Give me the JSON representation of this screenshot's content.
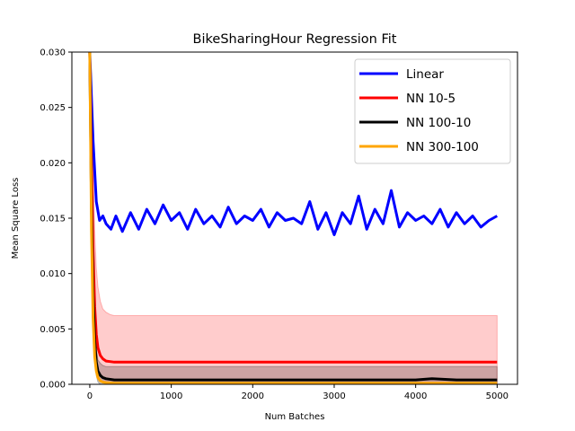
{
  "chart_data": {
    "type": "line",
    "title": "BikeSharingHour Regression Fit",
    "xlabel": "Num Batches",
    "ylabel": "Mean Square Loss",
    "xlim": [
      -220,
      5250
    ],
    "ylim": [
      0,
      0.03
    ],
    "xticks": [
      0,
      1000,
      2000,
      3000,
      4000,
      5000
    ],
    "xtick_labels": [
      "0",
      "1000",
      "2000",
      "3000",
      "4000",
      "5000"
    ],
    "yticks": [
      0,
      0.005,
      0.01,
      0.015,
      0.02,
      0.025,
      0.03
    ],
    "ytick_labels": [
      "0.000",
      "0.005",
      "0.010",
      "0.015",
      "0.020",
      "0.025",
      "0.030"
    ],
    "grid": false,
    "legend": {
      "position": "top-right"
    },
    "series": [
      {
        "name": "Linear",
        "color": "#0000ff",
        "x": [
          0,
          40,
          80,
          120,
          160,
          200,
          260,
          320,
          400,
          500,
          600,
          700,
          800,
          900,
          1000,
          1100,
          1200,
          1300,
          1400,
          1500,
          1600,
          1700,
          1800,
          1900,
          2000,
          2100,
          2200,
          2300,
          2400,
          2500,
          2600,
          2700,
          2800,
          2900,
          3000,
          3100,
          3200,
          3300,
          3400,
          3500,
          3600,
          3700,
          3800,
          3900,
          4000,
          4100,
          4200,
          4300,
          4400,
          4500,
          4600,
          4700,
          4800,
          4900,
          5000
        ],
        "y": [
          0.03,
          0.022,
          0.0165,
          0.0148,
          0.0152,
          0.0145,
          0.014,
          0.0152,
          0.0138,
          0.0155,
          0.014,
          0.0158,
          0.0145,
          0.0162,
          0.0148,
          0.0155,
          0.014,
          0.0158,
          0.0145,
          0.0152,
          0.0142,
          0.016,
          0.0145,
          0.0152,
          0.0148,
          0.0158,
          0.0142,
          0.0155,
          0.0148,
          0.015,
          0.0145,
          0.0165,
          0.014,
          0.0155,
          0.0135,
          0.0155,
          0.0145,
          0.017,
          0.014,
          0.0158,
          0.0145,
          0.0175,
          0.0142,
          0.0155,
          0.0148,
          0.0152,
          0.0145,
          0.0158,
          0.0142,
          0.0155,
          0.0145,
          0.0152,
          0.0142,
          0.0148,
          0.0152
        ]
      },
      {
        "name": "NN 10-5",
        "color": "#ff0000",
        "x": [
          0,
          20,
          40,
          60,
          80,
          100,
          130,
          160,
          200,
          250,
          300,
          400,
          600,
          1000,
          1500,
          2000,
          2500,
          3000,
          3500,
          4000,
          4500,
          5000
        ],
        "y": [
          0.03,
          0.02,
          0.012,
          0.007,
          0.0045,
          0.0033,
          0.0026,
          0.0023,
          0.0021,
          0.00205,
          0.002,
          0.002,
          0.002,
          0.002,
          0.002,
          0.002,
          0.002,
          0.002,
          0.002,
          0.002,
          0.002,
          0.002
        ],
        "band_upper": [
          0.03,
          0.028,
          0.02,
          0.014,
          0.0105,
          0.0088,
          0.0075,
          0.0068,
          0.0065,
          0.0063,
          0.0062,
          0.0062,
          0.0062,
          0.0062,
          0.0062,
          0.0062,
          0.0062,
          0.0062,
          0.0062,
          0.0062,
          0.0062,
          0.0062
        ],
        "band_lower": [
          0.03,
          0.012,
          0.006,
          0.003,
          0.0015,
          0.0008,
          0.0004,
          0.0002,
          0.0001,
          0,
          0,
          0,
          0,
          0,
          0,
          0,
          0,
          0,
          0,
          0,
          0,
          0
        ]
      },
      {
        "name": "NN 100-10",
        "color": "#000000",
        "x": [
          0,
          20,
          40,
          60,
          80,
          100,
          130,
          160,
          200,
          300,
          500,
          800,
          1200,
          1600,
          2000,
          2500,
          3000,
          3500,
          4000,
          4200,
          4500,
          5000
        ],
        "y": [
          0.03,
          0.016,
          0.008,
          0.004,
          0.002,
          0.0012,
          0.0008,
          0.0006,
          0.0005,
          0.0004,
          0.0004,
          0.0004,
          0.0004,
          0.0004,
          0.0004,
          0.0004,
          0.0004,
          0.0004,
          0.0004,
          0.0005,
          0.0004,
          0.0004
        ],
        "band_upper": [
          0.03,
          0.02,
          0.011,
          0.006,
          0.0032,
          0.0022,
          0.0019,
          0.0017,
          0.0016,
          0.0016,
          0.0016,
          0.0016,
          0.0016,
          0.0016,
          0.0016,
          0.0016,
          0.0016,
          0.0016,
          0.0016,
          0.0016,
          0.0016,
          0.0016
        ],
        "band_lower": [
          0.03,
          0.012,
          0.005,
          0.002,
          0.0008,
          0.0002,
          0,
          0,
          0,
          0,
          0,
          0,
          0,
          0,
          0,
          0,
          0,
          0,
          0,
          0,
          0,
          0
        ]
      },
      {
        "name": "NN 300-100",
        "color": "#ffa500",
        "x": [
          0,
          20,
          40,
          60,
          80,
          100,
          130,
          160,
          200,
          300,
          500,
          1000,
          1500,
          2000,
          2500,
          3000,
          3500,
          4000,
          4500,
          5000
        ],
        "y": [
          0.03,
          0.014,
          0.006,
          0.0025,
          0.0012,
          0.0006,
          0.0003,
          0.0002,
          0.00015,
          0.0001,
          0.0001,
          0.0001,
          0.0001,
          0.0001,
          0.0001,
          0.0001,
          0.0001,
          0.0001,
          0.0001,
          0.0001
        ]
      }
    ]
  }
}
